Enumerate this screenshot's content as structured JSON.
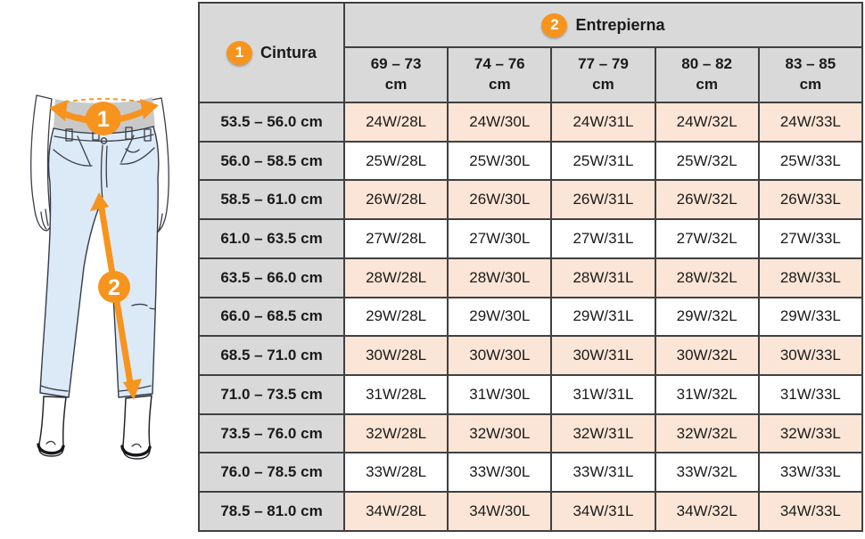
{
  "colors": {
    "accent_orange": "#F7941D",
    "row_highlight_peach": "#FBE5D6",
    "header_gray": "#D9D9D9",
    "table_border": "#404040",
    "jeans_blue": "#DCE9F6",
    "shirt_gray": "#C9C9C9"
  },
  "figure": {
    "waist_badge": "1",
    "inseam_badge": "2"
  },
  "table": {
    "waist": {
      "badge": "1",
      "label": "Cintura"
    },
    "inseam": {
      "badge": "2",
      "label": "Entrepierna"
    },
    "columns": [
      {
        "range": "69 – 73",
        "unit": "cm"
      },
      {
        "range": "74 – 76",
        "unit": "cm"
      },
      {
        "range": "77 – 79",
        "unit": "cm"
      },
      {
        "range": "80 – 82",
        "unit": "cm"
      },
      {
        "range": "83 – 85",
        "unit": "cm"
      }
    ],
    "rows": [
      {
        "label": "53.5 – 56.0 cm",
        "values": [
          "24W/28L",
          "24W/30L",
          "24W/31L",
          "24W/32L",
          "24W/33L"
        ]
      },
      {
        "label": "56.0 – 58.5 cm",
        "values": [
          "25W/28L",
          "25W/30L",
          "25W/31L",
          "25W/32L",
          "25W/33L"
        ]
      },
      {
        "label": "58.5 – 61.0 cm",
        "values": [
          "26W/28L",
          "26W/30L",
          "26W/31L",
          "26W/32L",
          "26W/33L"
        ]
      },
      {
        "label": "61.0 – 63.5 cm",
        "values": [
          "27W/28L",
          "27W/30L",
          "27W/31L",
          "27W/32L",
          "27W/33L"
        ]
      },
      {
        "label": "63.5 – 66.0 cm",
        "values": [
          "28W/28L",
          "28W/30L",
          "28W/31L",
          "28W/32L",
          "28W/33L"
        ]
      },
      {
        "label": "66.0 – 68.5 cm",
        "values": [
          "29W/28L",
          "29W/30L",
          "29W/31L",
          "29W/32L",
          "29W/33L"
        ]
      },
      {
        "label": "68.5 – 71.0 cm",
        "values": [
          "30W/28L",
          "30W/30L",
          "30W/31L",
          "30W/32L",
          "30W/33L"
        ]
      },
      {
        "label": "71.0 – 73.5 cm",
        "values": [
          "31W/28L",
          "31W/30L",
          "31W/31L",
          "31W/32L",
          "31W/33L"
        ]
      },
      {
        "label": "73.5 – 76.0 cm",
        "values": [
          "32W/28L",
          "32W/30L",
          "32W/31L",
          "32W/32L",
          "32W/33L"
        ]
      },
      {
        "label": "76.0 – 78.5 cm",
        "values": [
          "33W/28L",
          "33W/30L",
          "33W/31L",
          "33W/32L",
          "33W/33L"
        ]
      },
      {
        "label": "78.5 – 81.0 cm",
        "values": [
          "34W/28L",
          "34W/30L",
          "34W/31L",
          "34W/32L",
          "34W/33L"
        ]
      }
    ]
  }
}
